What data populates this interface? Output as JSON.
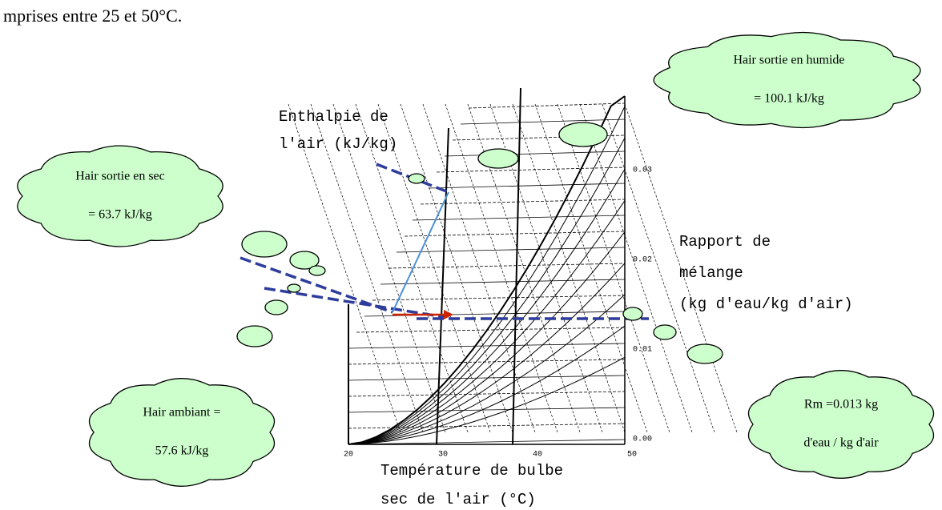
{
  "intro": "mprises entre 25 et 50°C.",
  "chart": {
    "enthalpy_label": [
      "Enthalpie de",
      "l'air (kJ/kg)"
    ],
    "mixing_label": [
      "Rapport de",
      "mélange",
      "(kg d'eau/kg d'air)"
    ],
    "temperature_label": [
      "Température de bulbe",
      "sec de l'air (°C)"
    ],
    "x_ticks": [
      "20",
      "30",
      "40",
      "50"
    ],
    "y_ticks": [
      "0.03",
      "0.02",
      "0.01",
      "0.00"
    ]
  },
  "callouts": [
    {
      "lines": [
        "Hair sortie en humide",
        "= 100.1 kJ/kg"
      ]
    },
    {
      "lines": [
        "Hair sortie en sec",
        "= 63.7 kJ/kg"
      ]
    },
    {
      "lines": [
        "Hair ambiant =",
        "57.6 kJ/kg"
      ]
    },
    {
      "lines": [
        "Rm =0.013 kg",
        "d'eau / kg d'air"
      ]
    }
  ]
}
